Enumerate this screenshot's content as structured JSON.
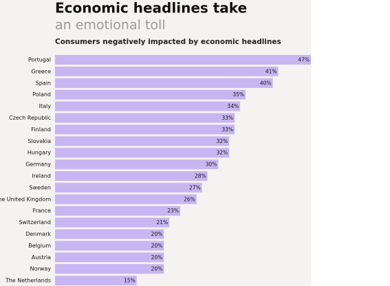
{
  "chart_data": {
    "type": "bar",
    "orientation": "horizontal",
    "title": "Economic headlines take",
    "title_line2": "an emotional toll",
    "subtitle": "Consumers negatively impacted by economic headlines",
    "categories": [
      "Portugal",
      "Greece",
      "Spain",
      "Poland",
      "Italy",
      "Czech Republic",
      "Finland",
      "Slovakia",
      "Hungary",
      "Germany",
      "Ireland",
      "Sweden",
      "The United Kingdom",
      "France",
      "Switzerland",
      "Denmark",
      "Belgium",
      "Austria",
      "Norway",
      "The Netherlands"
    ],
    "values": [
      47,
      41,
      40,
      35,
      34,
      33,
      33,
      32,
      32,
      30,
      28,
      27,
      26,
      23,
      21,
      20,
      20,
      20,
      20,
      15
    ],
    "value_labels": [
      "47%",
      "41%",
      "40%",
      "35%",
      "34%",
      "33%",
      "33%",
      "32%",
      "32%",
      "30%",
      "28%",
      "27%",
      "26%",
      "23%",
      "21%",
      "20%",
      "20%",
      "20%",
      "20%",
      "15%"
    ],
    "color": "#c8b5f2"
  }
}
